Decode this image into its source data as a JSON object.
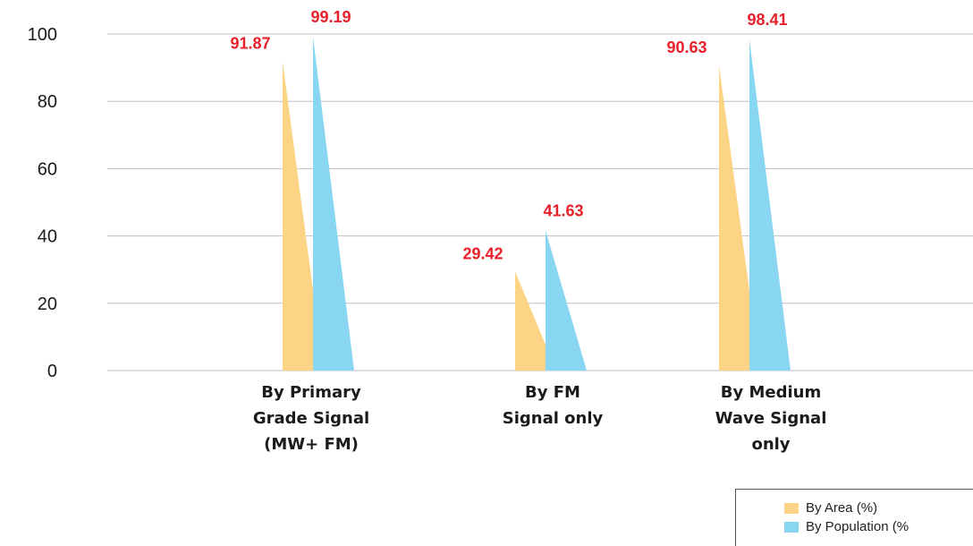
{
  "colors": {
    "area": "#FDD485",
    "population": "#89D6F2",
    "value_label": "#E8202A",
    "grid": "#BFBFBF",
    "axis_text": "#1a1a1a"
  },
  "chart_data": {
    "type": "bar",
    "bar_shape": "triangle",
    "title": "",
    "xlabel": "",
    "ylabel": "",
    "ylim": [
      0,
      100
    ],
    "yticks": [
      "0",
      "20",
      "40",
      "60",
      "80",
      "100"
    ],
    "grid": true,
    "legend_position": "bottom-right",
    "categories": [
      [
        "By Primary",
        "Grade Signal",
        "(MW+ FM)"
      ],
      [
        "By FM",
        "Signal only"
      ],
      [
        "By Medium",
        "Wave Signal",
        "only"
      ]
    ],
    "series": [
      {
        "name": "By  Area (%)",
        "values": [
          91.87,
          29.42,
          90.63
        ],
        "labels": [
          "91.87",
          "29.42",
          "90.63"
        ]
      },
      {
        "name": "By Population (%",
        "values": [
          99.19,
          41.63,
          98.41
        ],
        "labels": [
          "99.19",
          "41.63",
          "98.41"
        ]
      }
    ]
  }
}
